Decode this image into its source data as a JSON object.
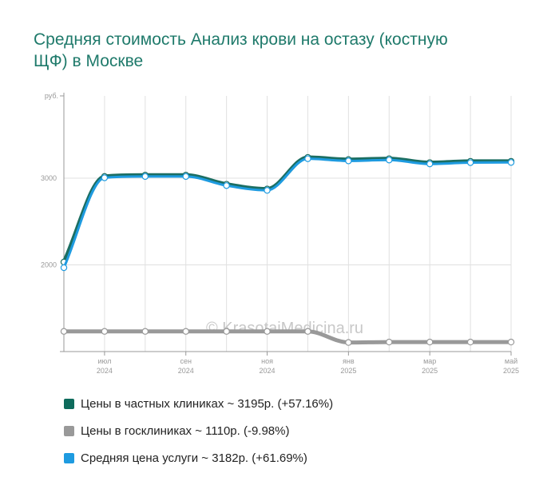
{
  "title": "Средняя стоимость Анализ крови на остазу (костную ЩФ) в Москве",
  "watermark": "© KrasotaiMedicina.ru",
  "chart_data": {
    "type": "line",
    "y_unit": "руб.",
    "y_ticks": [
      "2000",
      "3000"
    ],
    "ylim": [
      1000,
      3950
    ],
    "x_points": 12,
    "x_tick_labels": [
      {
        "index": 1,
        "month": "июл",
        "year": "2024"
      },
      {
        "index": 3,
        "month": "сен",
        "year": "2024"
      },
      {
        "index": 5,
        "month": "ноя",
        "year": "2024"
      },
      {
        "index": 7,
        "month": "янв",
        "year": "2025"
      },
      {
        "index": 9,
        "month": "мар",
        "year": "2025"
      },
      {
        "index": 11,
        "month": "май",
        "year": "2025"
      }
    ],
    "grid": true,
    "series": [
      {
        "name": "Цены в частных клиниках",
        "color": "#1b6e62",
        "values": [
          2033,
          3020,
          3035,
          3035,
          2930,
          2875,
          3240,
          3215,
          3225,
          3180,
          3195,
          3195
        ]
      },
      {
        "name": "Цены в госклиниках",
        "color": "#999999",
        "values": [
          1233,
          1233,
          1233,
          1233,
          1233,
          1233,
          1233,
          1105,
          1110,
          1110,
          1110,
          1110
        ]
      },
      {
        "name": "Средняя цена услуги",
        "color": "#1e9be0",
        "values": [
          1968,
          3005,
          3020,
          3020,
          2915,
          2860,
          3225,
          3200,
          3210,
          3165,
          3180,
          3182
        ]
      }
    ]
  },
  "legend": [
    {
      "label": "Цены в частных клиниках ~ 3195р. (+57.16%)",
      "color": "#0e6b5c"
    },
    {
      "label": "Цены в госклиниках ~ 1110р. (-9.98%)",
      "color": "#999999"
    },
    {
      "label": "Средняя цена услуги ~ 3182р. (+61.69%)",
      "color": "#1e9be0"
    }
  ]
}
